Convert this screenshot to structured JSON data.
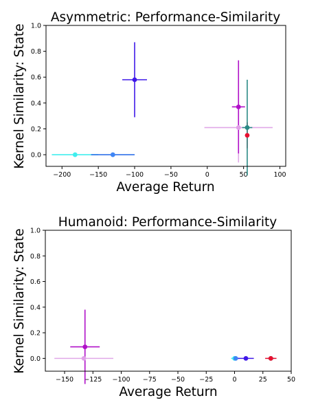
{
  "chart_data": [
    {
      "type": "scatter",
      "title": "Asymmetric: Performance-Similarity",
      "xlabel": "Average Return",
      "ylabel": "Kernel Similarity: State",
      "xlim": [
        -222,
        108
      ],
      "ylim": [
        -0.09,
        1.0
      ],
      "xticks": [
        -200,
        -150,
        -100,
        -50,
        0,
        50,
        100
      ],
      "yticks": [
        0.0,
        0.2,
        0.4,
        0.6,
        0.8,
        1.0
      ],
      "grid": false,
      "points": [
        {
          "x": -182,
          "y": 0.0,
          "xerr": 32,
          "yerr": 0.01,
          "color": "#40eeee",
          "errcolor": "#40eeee"
        },
        {
          "x": -130,
          "y": 0.0,
          "xerr": 30,
          "yerr": 0.01,
          "color": "#3f86f5",
          "errcolor": "#2f70e8"
        },
        {
          "x": -100,
          "y": 0.58,
          "xerr": 17,
          "yerr": 0.29,
          "color": "#3f18e8",
          "errcolor": "#3f18e8"
        },
        {
          "x": 43,
          "y": 0.21,
          "xerr": 47,
          "yerr": 0.27,
          "color": "#e0a0e8",
          "errcolor": "#e0a8e8"
        },
        {
          "x": 43,
          "y": 0.37,
          "xerr": 9,
          "yerr": 0.36,
          "color": "#b010c8",
          "errcolor": "#b010c8"
        },
        {
          "x": 55,
          "y": 0.15,
          "xerr": 1,
          "yerr": 0.1,
          "color": "#e81030",
          "errcolor": "#e81030"
        },
        {
          "x": 55,
          "y": 0.21,
          "xerr": 7,
          "yerr": 0.37,
          "color": "#2a8a86",
          "errcolor": "#2a8a86"
        }
      ]
    },
    {
      "type": "scatter",
      "title": "Humanoid: Performance-Similarity",
      "xlabel": "Average Return",
      "ylabel": "Kernel Similarity: State",
      "xlim": [
        -167,
        50
      ],
      "ylim": [
        -0.1,
        1.0
      ],
      "xticks": [
        -150,
        -125,
        -100,
        -75,
        -50,
        -25,
        0,
        25,
        50
      ],
      "yticks": [
        0.0,
        0.2,
        0.4,
        0.6,
        0.8,
        1.0
      ],
      "grid": false,
      "points": [
        {
          "x": -133,
          "y": 0.0,
          "xerr": 26,
          "yerr": 0.005,
          "color": "#e0a0e8",
          "errcolor": "#e0a8e8"
        },
        {
          "x": -132,
          "y": 0.09,
          "xerr": 13,
          "yerr": 0.29,
          "color": "#b010c8",
          "errcolor": "#b010c8"
        },
        {
          "x": 0,
          "y": 0.0,
          "xerr": 3,
          "yerr": 0.005,
          "color": "#40eeee",
          "errcolor": "#40eeee"
        },
        {
          "x": 1,
          "y": 0.0,
          "xerr": 3,
          "yerr": 0.005,
          "color": "#3f86f5",
          "errcolor": "#2f70e8"
        },
        {
          "x": 10,
          "y": 0.0,
          "xerr": 7,
          "yerr": 0.005,
          "color": "#3f18e8",
          "errcolor": "#3f18e8"
        },
        {
          "x": 32,
          "y": 0.0,
          "xerr": 3,
          "yerr": 0.005,
          "color": "#2a8a86",
          "errcolor": "#2a8a86"
        },
        {
          "x": 32,
          "y": 0.0,
          "xerr": 5,
          "yerr": 0.005,
          "color": "#e81030",
          "errcolor": "#e81030"
        }
      ]
    }
  ]
}
